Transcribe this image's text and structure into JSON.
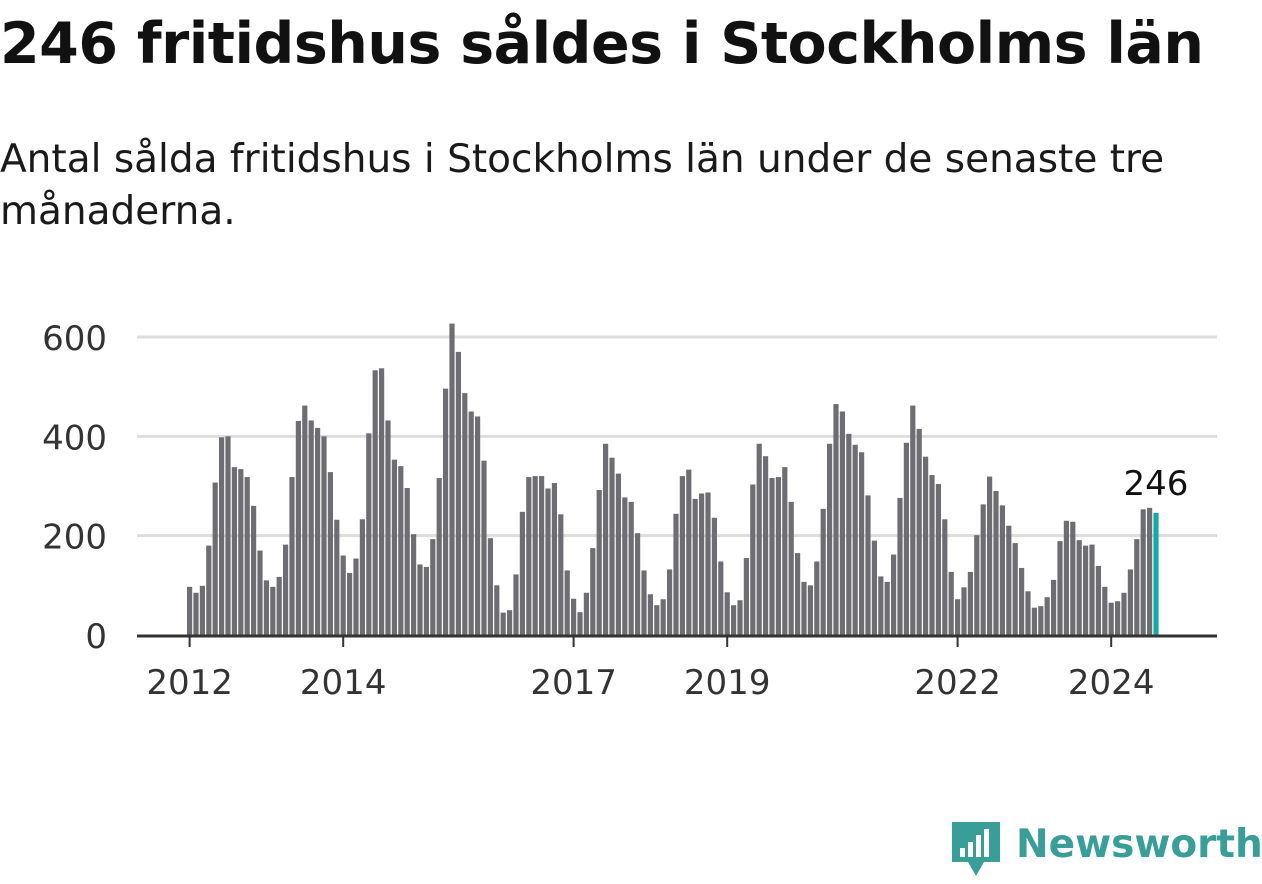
{
  "header": {
    "title": "246 fritidshus såldes i Stockholms län",
    "subtitle": "Antal sålda fritidshus i Stockholms län under de senaste tre månaderna."
  },
  "brand": {
    "name": "Newsworthy",
    "color": "#3a9e98",
    "icon": "newsworthy-logo-icon"
  },
  "colors": {
    "bar": "#6e6d73",
    "highlight": "#17aaa4",
    "grid": "#dddddd",
    "axis": "#333333",
    "text": "#333333"
  },
  "chart_data": {
    "type": "bar",
    "title": "246 fritidshus såldes i Stockholms län",
    "subtitle": "Antal sålda fritidshus i Stockholms län under de senaste tre månaderna.",
    "xlabel": "",
    "ylabel": "",
    "ylim": [
      0,
      650
    ],
    "yticks": [
      0,
      200,
      400,
      600
    ],
    "grid": true,
    "start": "2012-01",
    "frequency": "monthly",
    "xticks": [
      "2012",
      "2014",
      "2017",
      "2019",
      "2022",
      "2024"
    ],
    "highlight_label": "246",
    "values": [
      97,
      85,
      99,
      180,
      307,
      398,
      400,
      338,
      334,
      318,
      260,
      170,
      110,
      97,
      117,
      182,
      318,
      431,
      462,
      432,
      417,
      400,
      328,
      232,
      160,
      125,
      154,
      233,
      406,
      533,
      537,
      432,
      353,
      340,
      296,
      203,
      142,
      137,
      193,
      316,
      496,
      627,
      570,
      487,
      450,
      440,
      351,
      195,
      100,
      45,
      50,
      122,
      248,
      318,
      320,
      320,
      295,
      306,
      243,
      130,
      73,
      46,
      85,
      175,
      292,
      385,
      357,
      325,
      277,
      268,
      205,
      130,
      82,
      60,
      72,
      132,
      244,
      320,
      333,
      274,
      285,
      287,
      236,
      148,
      86,
      60,
      70,
      155,
      303,
      385,
      360,
      316,
      318,
      338,
      268,
      165,
      107,
      100,
      148,
      254,
      385,
      465,
      450,
      405,
      383,
      368,
      281,
      190,
      118,
      107,
      162,
      276,
      387,
      462,
      415,
      359,
      322,
      304,
      233,
      127,
      72,
      96,
      127,
      201,
      263,
      319,
      290,
      261,
      220,
      185,
      135,
      88,
      55,
      58,
      76,
      111,
      189,
      230,
      228,
      191,
      180,
      182,
      139,
      97,
      65,
      68,
      85,
      132,
      193,
      253,
      256,
      246
    ]
  }
}
